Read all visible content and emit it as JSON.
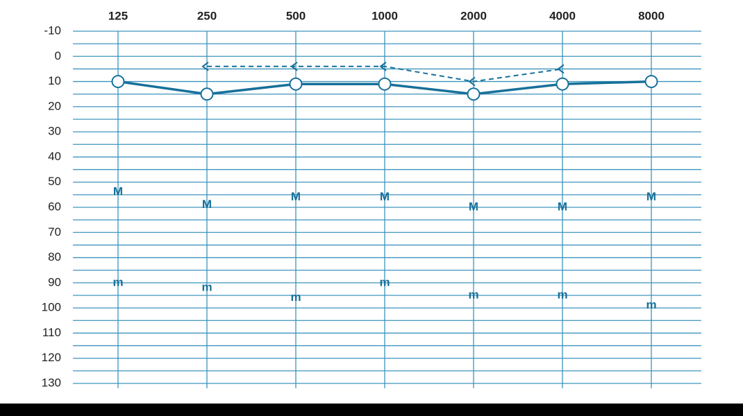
{
  "chart_data": {
    "type": "line",
    "categories": [
      "125",
      "250",
      "500",
      "1000",
      "2000",
      "4000",
      "8000"
    ],
    "ylim": [
      -10,
      130
    ],
    "yticks": [
      -10,
      0,
      10,
      20,
      30,
      40,
      50,
      60,
      70,
      80,
      90,
      100,
      110,
      120,
      130
    ],
    "minor_yticks": [
      -5,
      5,
      15,
      25,
      35,
      45,
      55,
      65,
      75,
      85,
      95,
      105,
      115,
      125
    ],
    "y_inverted": true,
    "grid": true,
    "grid_color": "#3d93bd",
    "series": [
      {
        "marker": "circle",
        "line": "solid",
        "color": "#17709a",
        "values": [
          10,
          15,
          11,
          11,
          15,
          11,
          10
        ]
      },
      {
        "marker": "<",
        "line": "dashed",
        "color": "#17709a",
        "values": [
          null,
          4,
          4,
          4,
          10,
          5,
          null
        ]
      },
      {
        "marker": "M",
        "line": "none",
        "color": "#17709a",
        "values": [
          54,
          59,
          56,
          56,
          60,
          60,
          56
        ]
      },
      {
        "marker": "m",
        "line": "none",
        "color": "#17709a",
        "values": [
          90,
          92,
          96,
          90,
          95,
          95,
          99
        ]
      }
    ]
  }
}
